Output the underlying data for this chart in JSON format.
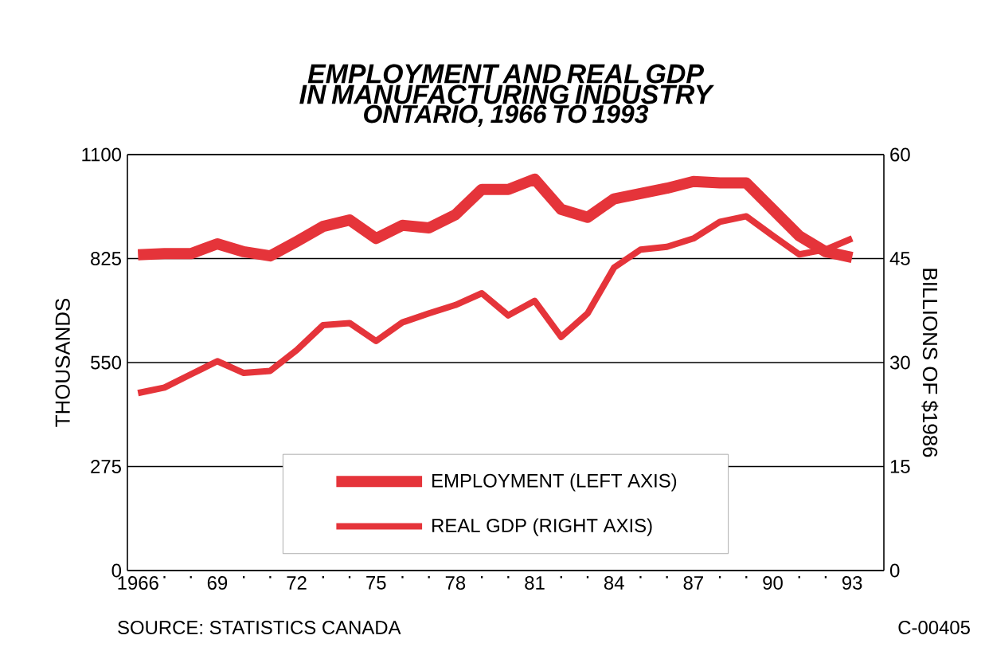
{
  "chart_data": {
    "type": "line",
    "title": "EMPLOYMENT AND REAL GDP IN MANUFACTURING INDUSTRY",
    "subtitle": "ONTARIO, 1966 TO 1993",
    "ylabel": "THOUSANDS",
    "y2label": "BILLIONS OF $1986",
    "x": [
      1966,
      1967,
      1968,
      1969,
      1970,
      1971,
      1972,
      1973,
      1974,
      1975,
      1976,
      1977,
      1978,
      1979,
      1980,
      1981,
      1982,
      1983,
      1984,
      1985,
      1986,
      1987,
      1988,
      1989,
      1990,
      1991,
      1992,
      1993
    ],
    "series": [
      {
        "name": "EMPLOYMENT (LEFT AXIS)",
        "color": "#e5343a",
        "axis": "y",
        "values": [
          835,
          838,
          838,
          864,
          843,
          832,
          870,
          910,
          927,
          878,
          913,
          906,
          941,
          1008,
          1008,
          1035,
          955,
          934,
          983,
          997,
          1011,
          1029,
          1025,
          1025,
          955,
          885,
          843,
          828
        ]
      },
      {
        "name": "REAL GDP (RIGHT AXIS)",
        "color": "#e5343a",
        "axis": "y2",
        "values": [
          25.6,
          26.4,
          28.3,
          30.2,
          28.5,
          28.8,
          31.8,
          35.4,
          35.7,
          33.1,
          35.8,
          37.1,
          38.3,
          40.0,
          36.8,
          38.9,
          33.7,
          37.1,
          43.7,
          46.3,
          46.7,
          47.9,
          50.3,
          51.1,
          48.3,
          45.6,
          46.3,
          47.9
        ]
      }
    ],
    "xlim": [
      1965.6,
      1994.2
    ],
    "xticks": [
      {
        "value": 1966,
        "label": "1966"
      },
      {
        "value": 1967,
        "label": "."
      },
      {
        "value": 1968,
        "label": "."
      },
      {
        "value": 1969,
        "label": "69"
      },
      {
        "value": 1970,
        "label": "."
      },
      {
        "value": 1971,
        "label": "."
      },
      {
        "value": 1972,
        "label": "72"
      },
      {
        "value": 1973,
        "label": "."
      },
      {
        "value": 1974,
        "label": "."
      },
      {
        "value": 1975,
        "label": "75"
      },
      {
        "value": 1976,
        "label": "."
      },
      {
        "value": 1977,
        "label": "."
      },
      {
        "value": 1978,
        "label": "78"
      },
      {
        "value": 1979,
        "label": "."
      },
      {
        "value": 1980,
        "label": "."
      },
      {
        "value": 1981,
        "label": "81"
      },
      {
        "value": 1982,
        "label": "."
      },
      {
        "value": 1983,
        "label": "."
      },
      {
        "value": 1984,
        "label": "84"
      },
      {
        "value": 1985,
        "label": "."
      },
      {
        "value": 1986,
        "label": "."
      },
      {
        "value": 1987,
        "label": "87"
      },
      {
        "value": 1988,
        "label": "."
      },
      {
        "value": 1989,
        "label": "."
      },
      {
        "value": 1990,
        "label": "90"
      },
      {
        "value": 1991,
        "label": "."
      },
      {
        "value": 1992,
        "label": "."
      },
      {
        "value": 1993,
        "label": "93"
      }
    ],
    "ylim": [
      0,
      1100
    ],
    "yticks": [
      0,
      275,
      550,
      825,
      1100
    ],
    "y2lim": [
      0,
      60
    ],
    "y2ticks": [
      0,
      15,
      30,
      45,
      60
    ],
    "grid": "y",
    "legend": "bottom",
    "annotations": [
      "SOURCE: STATISTICS CANADA",
      "C-00405"
    ]
  }
}
